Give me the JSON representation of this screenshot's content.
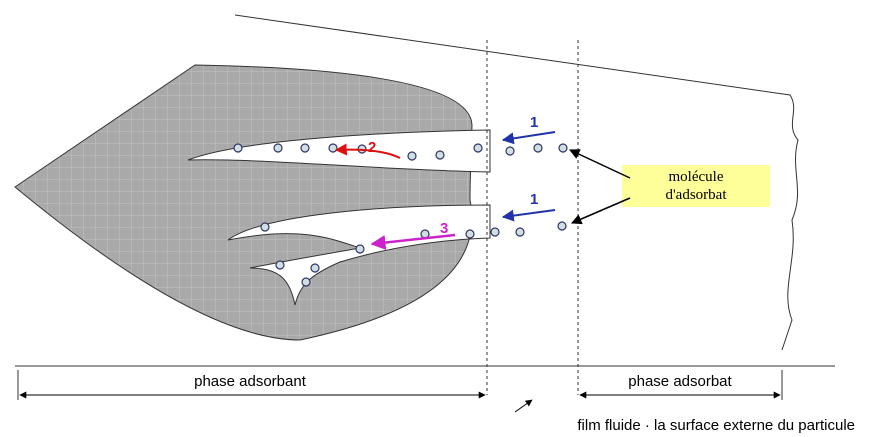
{
  "arrows": [
    {
      "label": "1"
    },
    {
      "label": "2"
    },
    {
      "label": "1"
    },
    {
      "label": "3"
    }
  ],
  "callout": [
    "molécule",
    "d'adsorbat"
  ],
  "regions": [
    "phase adsorbant",
    "phase adsorbat"
  ],
  "caption": "film fluide · la surface externe du particule"
}
